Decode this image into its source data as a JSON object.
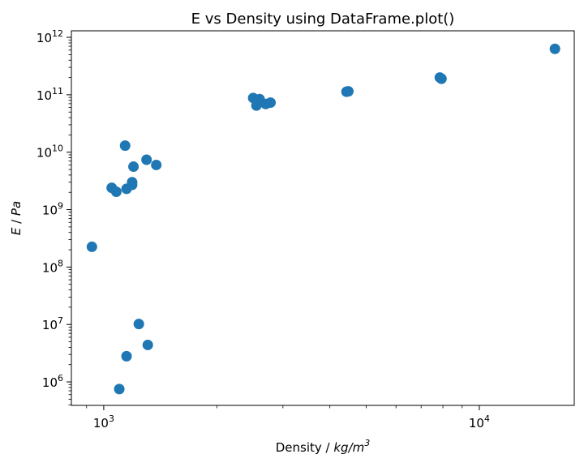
{
  "chart_data": {
    "type": "scatter",
    "title": "E vs Density using DataFrame.plot()",
    "xlabel": {
      "prefix": "Density / ",
      "math": "kg/m",
      "sup": "3"
    },
    "ylabel": {
      "math": "E",
      "suffix": " / ",
      "math2": "Pa"
    },
    "xscale": "log",
    "yscale": "log",
    "xlim": [
      820,
      17900
    ],
    "ylim": [
      390000,
      1300000000000
    ],
    "x_ticks": [
      {
        "value": 1000,
        "base": "10",
        "exp": "3"
      },
      {
        "value": 10000,
        "base": "10",
        "exp": "4"
      }
    ],
    "y_ticks": [
      {
        "value": 1000000,
        "base": "10",
        "exp": "6"
      },
      {
        "value": 10000000,
        "base": "10",
        "exp": "7"
      },
      {
        "value": 100000000,
        "base": "10",
        "exp": "8"
      },
      {
        "value": 1000000000,
        "base": "10",
        "exp": "9"
      },
      {
        "value": 10000000000,
        "base": "10",
        "exp": "10"
      },
      {
        "value": 100000000000,
        "base": "10",
        "exp": "11"
      },
      {
        "value": 1000000000000,
        "base": "10",
        "exp": "12"
      }
    ],
    "color": "#1f77b4",
    "points": [
      {
        "x": 930,
        "y": 225000000
      },
      {
        "x": 1050,
        "y": 2400000000
      },
      {
        "x": 1080,
        "y": 2050000000
      },
      {
        "x": 1100,
        "y": 750000
      },
      {
        "x": 1140,
        "y": 13000000000
      },
      {
        "x": 1150,
        "y": 2300000000
      },
      {
        "x": 1150,
        "y": 2800000
      },
      {
        "x": 1190,
        "y": 2700000000
      },
      {
        "x": 1190,
        "y": 3000000000
      },
      {
        "x": 1200,
        "y": 5600000000
      },
      {
        "x": 1240,
        "y": 10200000
      },
      {
        "x": 1300,
        "y": 7400000000
      },
      {
        "x": 1310,
        "y": 4400000
      },
      {
        "x": 1380,
        "y": 6000000000
      },
      {
        "x": 2500,
        "y": 88000000000
      },
      {
        "x": 2550,
        "y": 65000000000
      },
      {
        "x": 2600,
        "y": 84000000000
      },
      {
        "x": 2700,
        "y": 69000000000
      },
      {
        "x": 2780,
        "y": 73000000000
      },
      {
        "x": 4430,
        "y": 113000000000
      },
      {
        "x": 4480,
        "y": 115000000000
      },
      {
        "x": 7850,
        "y": 200000000000
      },
      {
        "x": 7930,
        "y": 190000000000
      },
      {
        "x": 15900,
        "y": 630000000000
      }
    ]
  }
}
